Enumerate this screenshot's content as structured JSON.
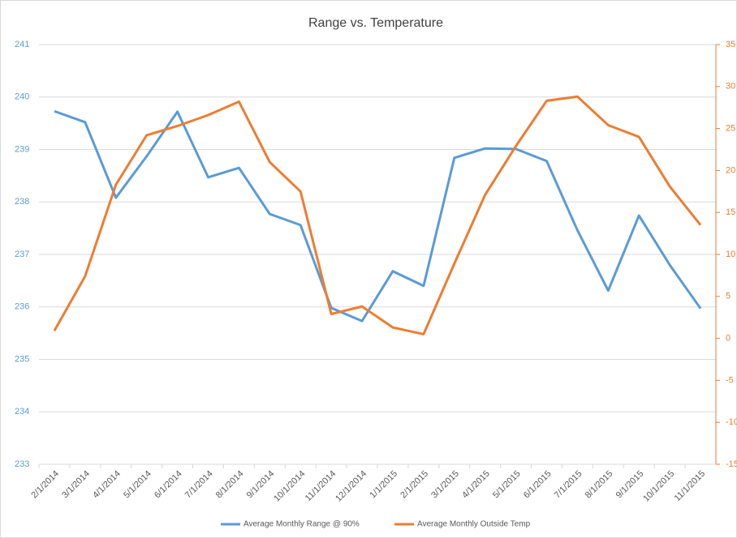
{
  "chart_data": {
    "type": "line",
    "title": "Range vs. Temperature",
    "categories": [
      "2/1/2014",
      "3/1/2014",
      "4/1/2014",
      "5/1/2014",
      "6/1/2014",
      "7/1/2014",
      "8/1/2014",
      "9/1/2014",
      "10/1/2014",
      "11/1/2014",
      "12/1/2014",
      "1/1/2015",
      "2/1/2015",
      "3/1/2015",
      "4/1/2015",
      "5/1/2015",
      "6/1/2015",
      "7/1/2015",
      "8/1/2015",
      "9/1/2015",
      "10/1/2015",
      "11/1/2015"
    ],
    "series": [
      {
        "name": "Average Monthly Range @ 90%",
        "color": "#5b9bd5",
        "values": [
          239.73,
          239.52,
          238.08,
          238.87,
          239.72,
          238.47,
          238.65,
          237.77,
          237.56,
          235.98,
          235.73,
          236.68,
          236.4,
          238.84,
          239.02,
          239.01,
          238.78,
          237.46,
          236.31,
          237.74,
          236.8,
          235.97
        ]
      },
      {
        "name": "Average Monthly Outside Temp",
        "color": "#ed7d31",
        "axis": "y2",
        "values": [
          0.9,
          7.4,
          18.3,
          24.2,
          25.3,
          26.6,
          28.2,
          21.0,
          17.5,
          2.9,
          3.8,
          1.3,
          0.5,
          8.9,
          17.1,
          22.9,
          28.3,
          28.8,
          25.4,
          24.0,
          18.1,
          13.5
        ]
      }
    ],
    "ylim": [
      233,
      241
    ],
    "yticks": [
      233,
      234,
      235,
      236,
      237,
      238,
      239,
      240,
      241
    ],
    "y2lim": [
      -15,
      35
    ],
    "y2ticks": [
      -15,
      -10,
      -5,
      0,
      5,
      10,
      15,
      20,
      25,
      30,
      35
    ],
    "grid": true,
    "legend": "bottom"
  }
}
